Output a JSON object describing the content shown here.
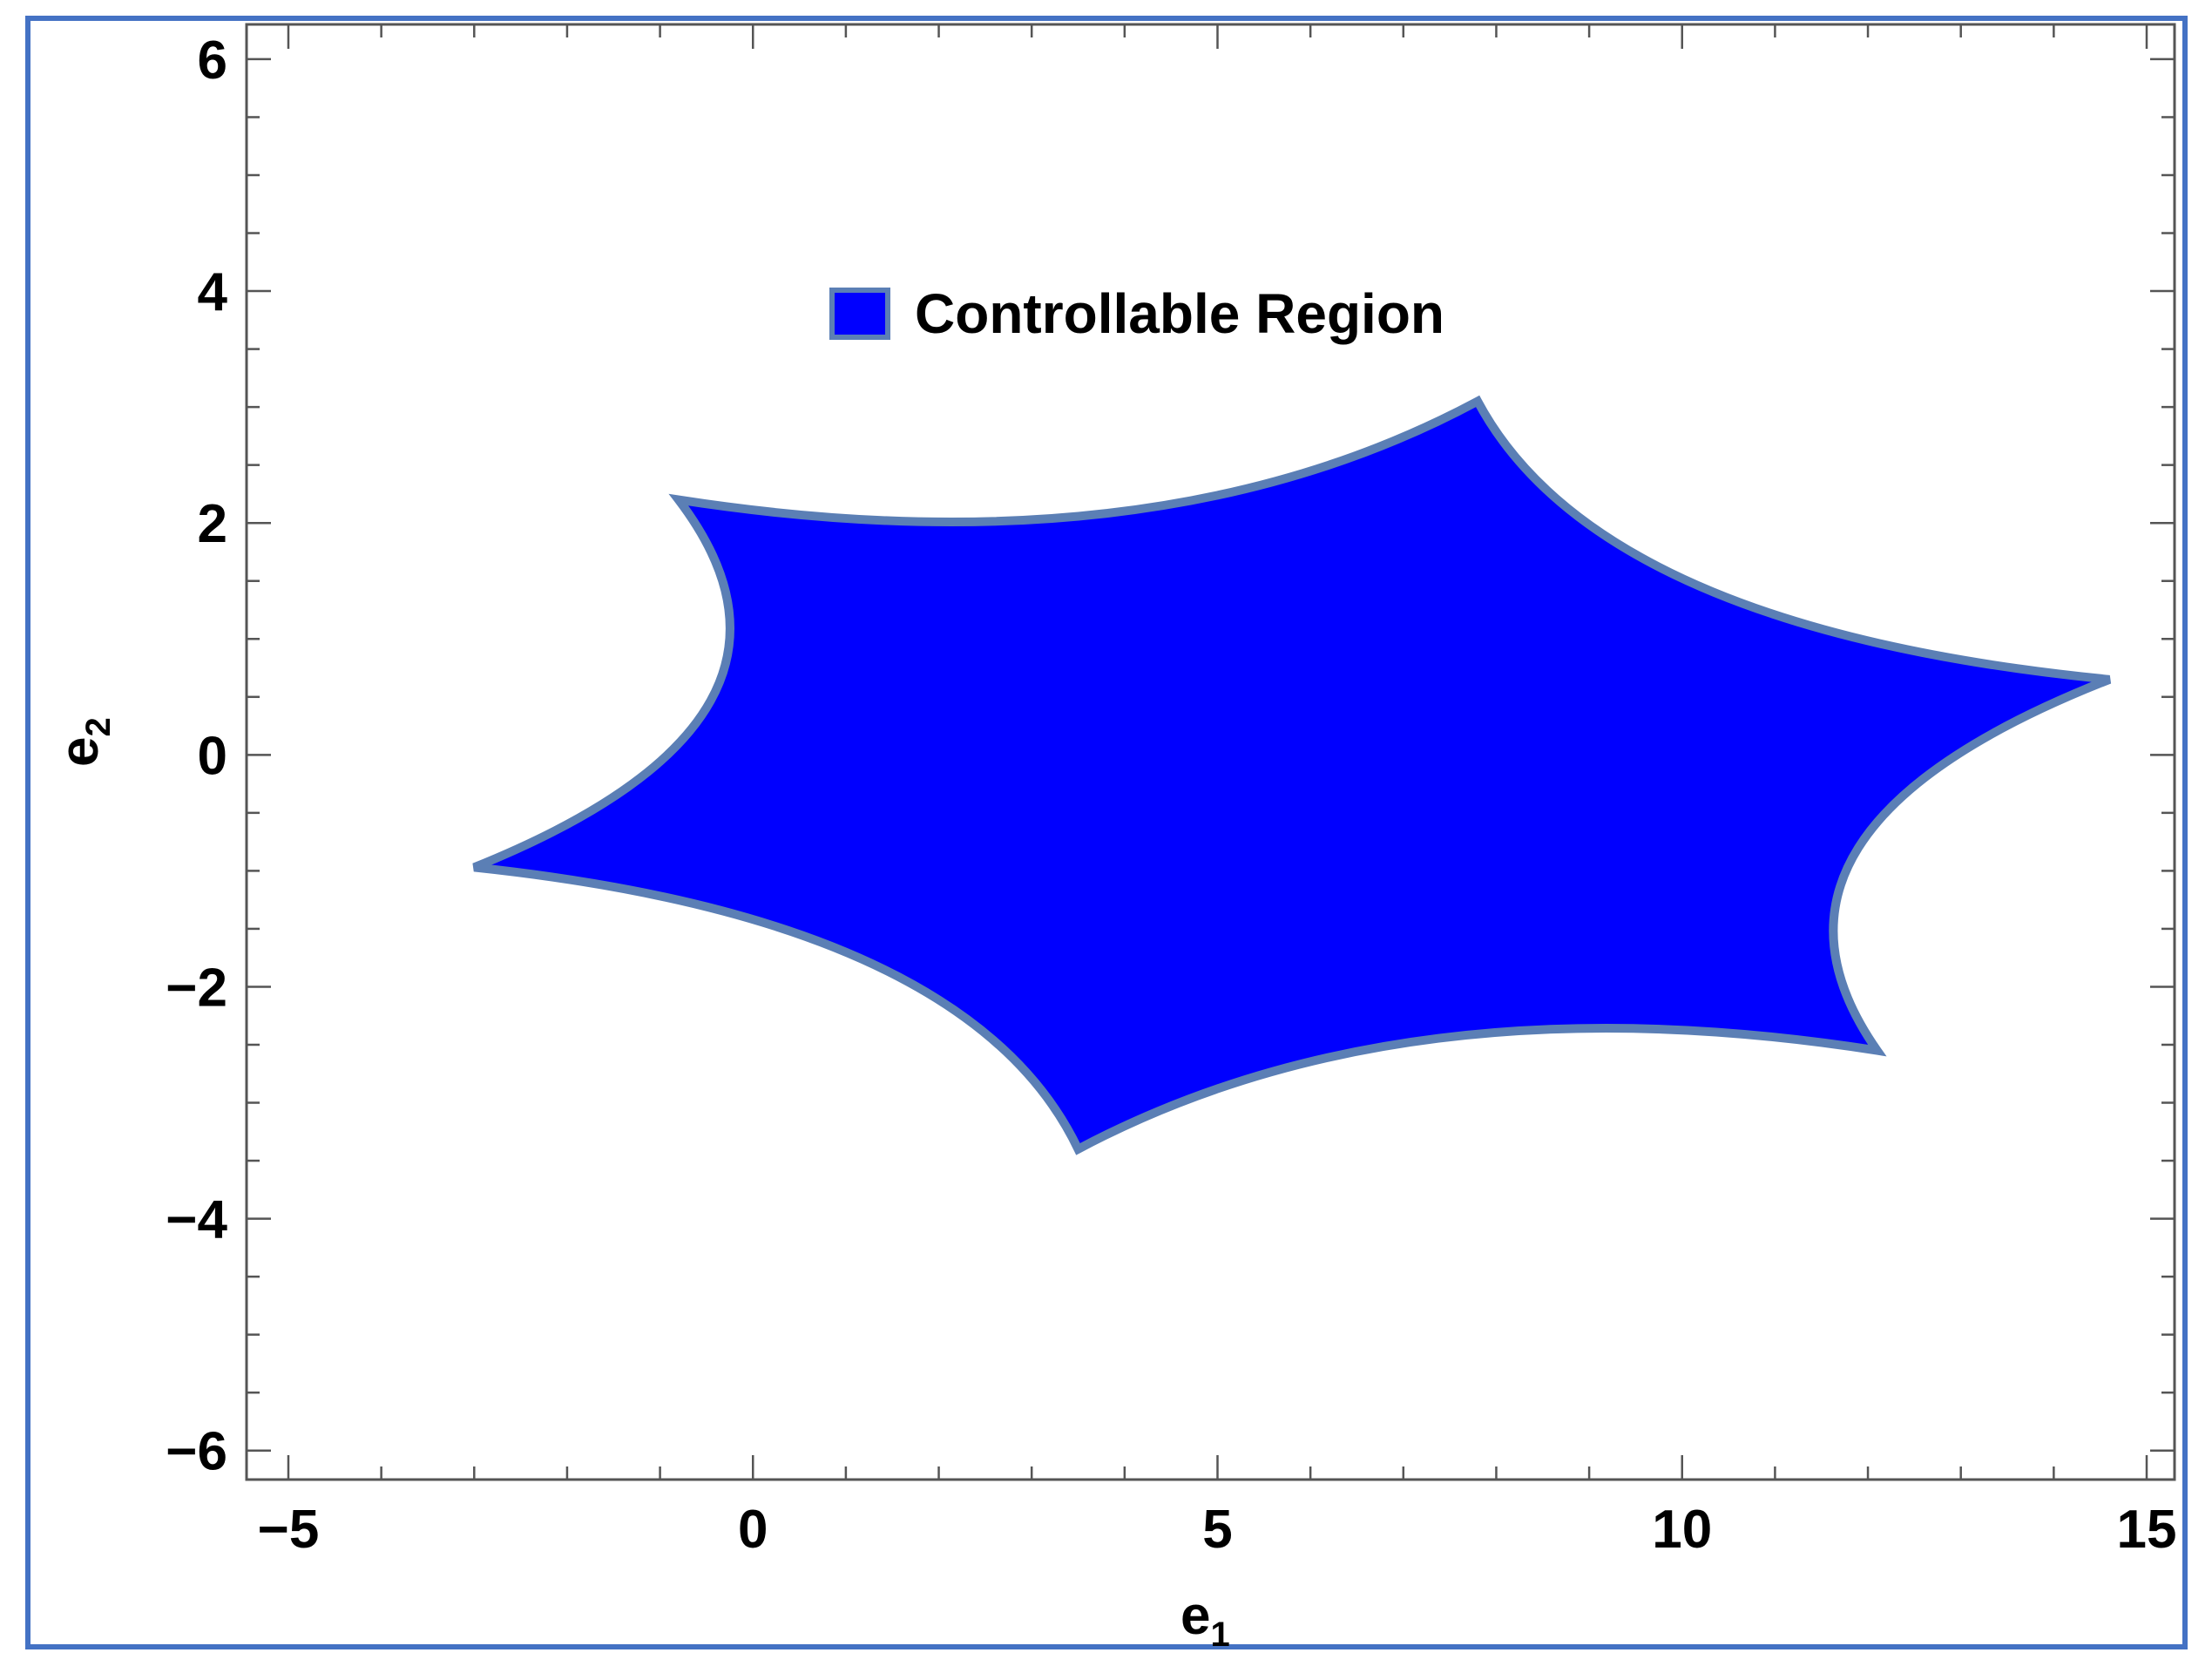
{
  "chart_data": {
    "type": "area",
    "title": "",
    "xlabel": "e",
    "xlabel_sub": "1",
    "ylabel": "e",
    "ylabel_sub": "2",
    "xlim": [
      -5.45,
      15.3
    ],
    "ylim": [
      -6.25,
      6.3
    ],
    "x_ticks": [
      -5,
      0,
      5,
      10,
      15
    ],
    "x_tick_labels": [
      "−5",
      "0",
      "5",
      "10",
      "15"
    ],
    "y_ticks": [
      -6,
      -4,
      -2,
      0,
      2,
      4,
      6
    ],
    "y_tick_labels": [
      "−6",
      "−4",
      "−2",
      "0",
      "2",
      "4",
      "6"
    ],
    "grid": false,
    "legend_position": "top-center",
    "series": [
      {
        "name": "Controllable Region",
        "fill_color": "#0000ff",
        "edge_color": "#5b7fb5",
        "vertices": [
          [
            -0.8,
            2.2
          ],
          [
            7.8,
            3.05
          ],
          [
            14.6,
            0.65
          ],
          [
            12.1,
            -2.55
          ],
          [
            3.5,
            -3.4
          ],
          [
            -3.0,
            -0.97
          ]
        ]
      }
    ]
  }
}
